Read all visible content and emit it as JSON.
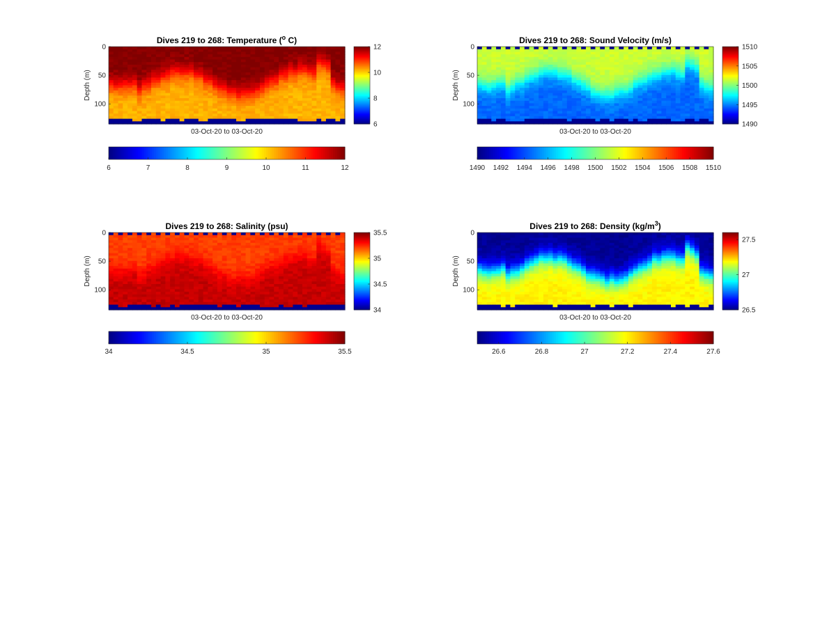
{
  "chart_data": [
    {
      "type": "heatmap",
      "title": "Dives 219 to 268: Temperature (° C)",
      "title_parts": {
        "before": "Dives 219 to 268: Temperature (",
        "sup": "o",
        "after": " C)"
      },
      "xlabel": "03-Oct-20 to 03-Oct-20",
      "ylabel": "Depth (m)",
      "ylim": [
        0,
        135
      ],
      "yticks": [
        0,
        50,
        100
      ],
      "colormap": "jet",
      "clim": [
        6,
        12
      ],
      "colorbar_ticks": [
        12,
        10,
        8,
        6
      ],
      "horizontal_colorbar_ticks": [
        "6",
        "7",
        "8",
        "9",
        "10",
        "11",
        "12"
      ],
      "surface_value": 12,
      "deep_value": 10.2,
      "mixed_depth": [
        40,
        80
      ],
      "dives": 50
    },
    {
      "type": "heatmap",
      "title": "Dives 219 to 268: Sound Velocity (m/s)",
      "title_parts": {
        "before": "Dives 219 to 268: Sound Velocity (m/s)",
        "sup": "",
        "after": ""
      },
      "xlabel": "03-Oct-20 to 03-Oct-20",
      "ylabel": "Depth (m)",
      "ylim": [
        0,
        135
      ],
      "yticks": [
        0,
        50,
        100
      ],
      "colormap": "jet",
      "clim": [
        1490,
        1510
      ],
      "colorbar_ticks": [
        1510,
        1505,
        1500,
        1495,
        1490
      ],
      "horizontal_colorbar_ticks": [
        "1490",
        "1492",
        "1494",
        "1496",
        "1498",
        "1500",
        "1502",
        "1504",
        "1506",
        "1508",
        "1510"
      ],
      "surface_value": 1501.5,
      "deep_value": 1494.5,
      "mixed_depth": [
        40,
        80
      ],
      "dives": 50
    },
    {
      "type": "heatmap",
      "title": "Dives 219 to 268: Salinity (psu)",
      "title_parts": {
        "before": "Dives 219 to 268: Salinity (psu)",
        "sup": "",
        "after": ""
      },
      "xlabel": "03-Oct-20 to 03-Oct-20",
      "ylabel": "Depth (m)",
      "ylim": [
        0,
        135
      ],
      "yticks": [
        0,
        50,
        100
      ],
      "colormap": "jet",
      "clim": [
        34,
        35.5
      ],
      "colorbar_ticks": [
        35.5,
        35,
        34.5,
        34
      ],
      "horizontal_colorbar_ticks": [
        "34",
        "34.5",
        "35",
        "35.5"
      ],
      "surface_value": 35.22,
      "deep_value": 35.4,
      "mixed_depth": [
        40,
        80
      ],
      "dives": 50
    },
    {
      "type": "heatmap",
      "title": "Dives 219 to 268: Density (kg/m³)",
      "title_parts": {
        "before": "Dives 219 to 268: Density (kg/m",
        "sup": "3",
        "after": ")"
      },
      "xlabel": "03-Oct-20 to 03-Oct-20",
      "ylabel": "Depth (m)",
      "ylim": [
        0,
        135
      ],
      "yticks": [
        0,
        50,
        100
      ],
      "colormap": "jet",
      "clim": [
        26.5,
        27.6
      ],
      "colorbar_ticks": [
        27.5,
        27,
        26.5
      ],
      "horizontal_colorbar_ticks": [
        "26.6",
        "26.8",
        "27",
        "27.2",
        "27.4",
        "27.6"
      ],
      "surface_value": 26.52,
      "deep_value": 27.2,
      "mixed_depth": [
        40,
        80
      ],
      "dives": 50
    }
  ]
}
